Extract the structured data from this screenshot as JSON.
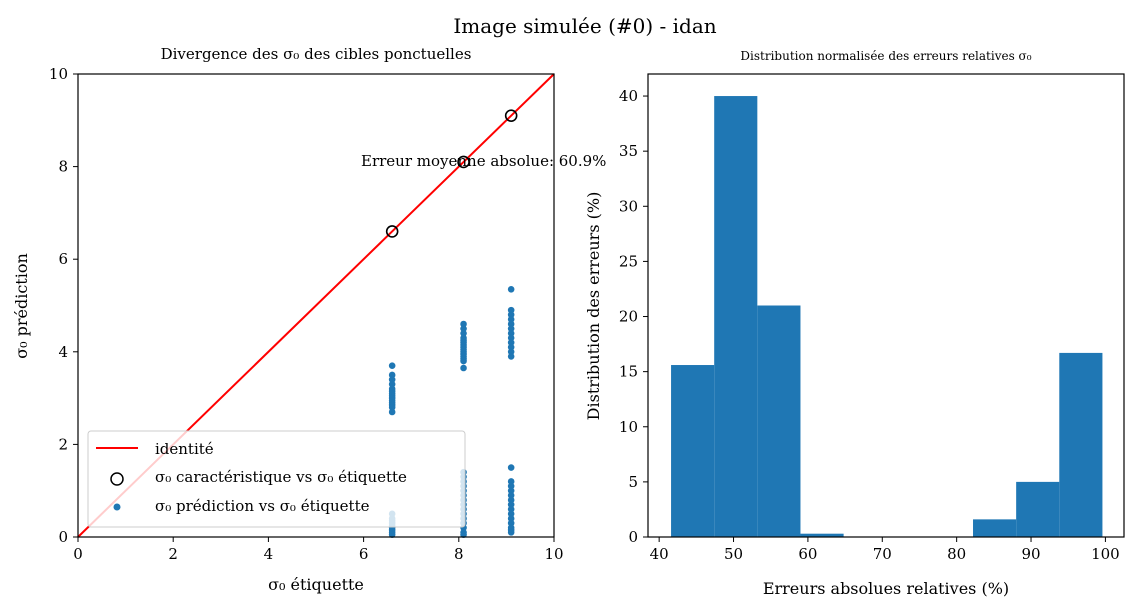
{
  "figure": {
    "suptitle": "Image simulée (#0) - idan"
  },
  "colors": {
    "identity_line": "#ff0000",
    "scatter": "#1f77b4",
    "bars": "#1f77b4",
    "characteristic_marker": "#000000"
  },
  "chart_data": [
    {
      "type": "scatter",
      "title": "Divergence des σ₀ des cibles ponctuelles",
      "xlabel": "σ₀ étiquette",
      "ylabel": "σ₀ prédiction",
      "xlim": [
        0,
        10
      ],
      "ylim": [
        0,
        10
      ],
      "xticks": [
        "0",
        "2",
        "4",
        "6",
        "8",
        "10"
      ],
      "yticks": [
        "0",
        "2",
        "4",
        "6",
        "8",
        "10"
      ],
      "annotation": "Erreur moyenne absolue: 60.9%",
      "legend": {
        "placement": "lower-left",
        "entries": [
          "identité",
          "σ₀ caractéristique vs σ₀ étiquette",
          "σ₀ prédiction vs σ₀ étiquette"
        ]
      },
      "series": [
        {
          "name": "identité",
          "kind": "line",
          "x": [
            0,
            10
          ],
          "y": [
            0,
            10
          ]
        },
        {
          "name": "σ₀ caractéristique vs σ₀ étiquette",
          "kind": "open-circle",
          "x": [
            6.6,
            8.1,
            9.1
          ],
          "y": [
            6.6,
            8.1,
            9.1
          ]
        },
        {
          "name": "σ₀ prédiction vs σ₀ étiquette",
          "kind": "dot",
          "points": [
            [
              6.6,
              3.7
            ],
            [
              6.6,
              3.5
            ],
            [
              6.6,
              3.4
            ],
            [
              6.6,
              3.3
            ],
            [
              6.6,
              3.2
            ],
            [
              6.6,
              3.15
            ],
            [
              6.6,
              3.1
            ],
            [
              6.6,
              3.05
            ],
            [
              6.6,
              3.0
            ],
            [
              6.6,
              2.95
            ],
            [
              6.6,
              2.9
            ],
            [
              6.6,
              2.85
            ],
            [
              6.6,
              2.8
            ],
            [
              6.6,
              2.7
            ],
            [
              6.6,
              0.5
            ],
            [
              6.6,
              0.4
            ],
            [
              6.6,
              0.35
            ],
            [
              6.6,
              0.3
            ],
            [
              6.6,
              0.25
            ],
            [
              6.6,
              0.2
            ],
            [
              6.6,
              0.15
            ],
            [
              6.6,
              0.1
            ],
            [
              6.6,
              0.05
            ],
            [
              8.1,
              4.6
            ],
            [
              8.1,
              4.5
            ],
            [
              8.1,
              4.4
            ],
            [
              8.1,
              4.3
            ],
            [
              8.1,
              4.25
            ],
            [
              8.1,
              4.2
            ],
            [
              8.1,
              4.15
            ],
            [
              8.1,
              4.1
            ],
            [
              8.1,
              4.05
            ],
            [
              8.1,
              4.0
            ],
            [
              8.1,
              3.95
            ],
            [
              8.1,
              3.9
            ],
            [
              8.1,
              3.85
            ],
            [
              8.1,
              3.8
            ],
            [
              8.1,
              3.65
            ],
            [
              8.1,
              1.4
            ],
            [
              8.1,
              1.3
            ],
            [
              8.1,
              1.2
            ],
            [
              8.1,
              1.1
            ],
            [
              8.1,
              1.0
            ],
            [
              8.1,
              0.9
            ],
            [
              8.1,
              0.8
            ],
            [
              8.1,
              0.7
            ],
            [
              8.1,
              0.6
            ],
            [
              8.1,
              0.5
            ],
            [
              8.1,
              0.4
            ],
            [
              8.1,
              0.3
            ],
            [
              8.1,
              0.2
            ],
            [
              8.1,
              0.1
            ],
            [
              8.1,
              0.05
            ],
            [
              9.1,
              5.35
            ],
            [
              9.1,
              4.9
            ],
            [
              9.1,
              4.8
            ],
            [
              9.1,
              4.7
            ],
            [
              9.1,
              4.6
            ],
            [
              9.1,
              4.5
            ],
            [
              9.1,
              4.4
            ],
            [
              9.1,
              4.3
            ],
            [
              9.1,
              4.2
            ],
            [
              9.1,
              4.1
            ],
            [
              9.1,
              4.0
            ],
            [
              9.1,
              3.9
            ],
            [
              9.1,
              1.5
            ],
            [
              9.1,
              1.2
            ],
            [
              9.1,
              1.1
            ],
            [
              9.1,
              1.0
            ],
            [
              9.1,
              0.9
            ],
            [
              9.1,
              0.8
            ],
            [
              9.1,
              0.7
            ],
            [
              9.1,
              0.6
            ],
            [
              9.1,
              0.5
            ],
            [
              9.1,
              0.4
            ],
            [
              9.1,
              0.3
            ],
            [
              9.1,
              0.2
            ],
            [
              9.1,
              0.15
            ],
            [
              9.1,
              0.1
            ]
          ]
        }
      ]
    },
    {
      "type": "bar",
      "title": "Distribution normalisée des erreurs relatives σ₀",
      "xlabel": "Erreurs absolues relatives (%)",
      "ylabel": "Distribution des erreurs (%)",
      "xlim": [
        38.5,
        102.5
      ],
      "ylim": [
        0,
        42
      ],
      "xticks": [
        40,
        50,
        60,
        70,
        80,
        90,
        100
      ],
      "yticks": [
        0,
        5,
        10,
        15,
        20,
        25,
        30,
        35,
        40
      ],
      "bins": [
        {
          "from": 41.6,
          "to": 47.4,
          "value": 15.6
        },
        {
          "from": 47.4,
          "to": 53.2,
          "value": 40.0
        },
        {
          "from": 53.2,
          "to": 59.0,
          "value": 21.0
        },
        {
          "from": 59.0,
          "to": 64.8,
          "value": 0.3
        },
        {
          "from": 64.8,
          "to": 70.6,
          "value": 0
        },
        {
          "from": 70.6,
          "to": 76.4,
          "value": 0
        },
        {
          "from": 76.4,
          "to": 82.2,
          "value": 0
        },
        {
          "from": 82.2,
          "to": 88.0,
          "value": 1.6
        },
        {
          "from": 88.0,
          "to": 93.8,
          "value": 5.0
        },
        {
          "from": 93.8,
          "to": 99.6,
          "value": 16.7
        }
      ]
    }
  ]
}
